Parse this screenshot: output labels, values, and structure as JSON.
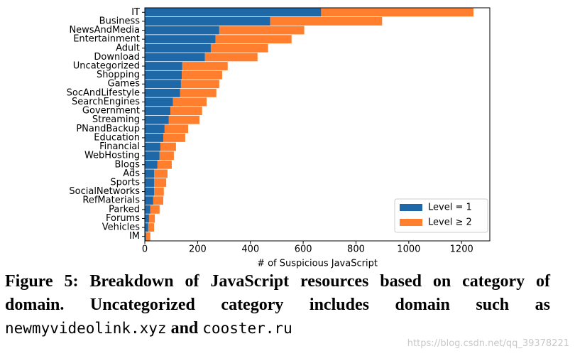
{
  "chart_data": {
    "type": "bar",
    "orientation": "horizontal",
    "stacked": true,
    "xlabel": "# of Suspicious JavaScript",
    "categories": [
      "IT",
      "Business",
      "NewsAndMedia",
      "Entertainment",
      "Adult",
      "Download",
      "Uncategorized",
      "Shopping",
      "Games",
      "SocAndLifestyle",
      "SearchEngines",
      "Government",
      "Streaming",
      "PNandBackup",
      "Education",
      "Financial",
      "WebHosting",
      "Blogs",
      "Ads",
      "Sports",
      "SocialNetworks",
      "RefMaterials",
      "Parked",
      "Forums",
      "Vehicles",
      "IM"
    ],
    "series": [
      {
        "name": "Level = 1",
        "color": "#1f68a8",
        "values": [
          668,
          475,
          282,
          268,
          250,
          228,
          142,
          140,
          137,
          134,
          107,
          97,
          91,
          75,
          70,
          59,
          56,
          48,
          35,
          35,
          35,
          32,
          21,
          16,
          13,
          5
        ]
      },
      {
        "name": "Level ≥ 2",
        "color": "#ff7f2e",
        "values": [
          577,
          424,
          322,
          288,
          217,
          199,
          172,
          153,
          145,
          137,
          127,
          120,
          116,
          89,
          83,
          59,
          54,
          54,
          51,
          46,
          37,
          38,
          35,
          22,
          22,
          16
        ]
      }
    ],
    "xlim": [
      0,
      1307
    ],
    "xticks": [
      0,
      200,
      400,
      600,
      800,
      1000,
      1200
    ],
    "legend": "lower right"
  },
  "caption": {
    "label": "Figure 5:",
    "text": "Breakdown of JavaScript resources based on category of domain. Uncategorized category includes domain such as",
    "code_1": "newmyvideolink.xyz",
    "joiner": "and",
    "code_2": "cooster.ru"
  },
  "watermark": "https://blog.csdn.net/qq_39378221"
}
